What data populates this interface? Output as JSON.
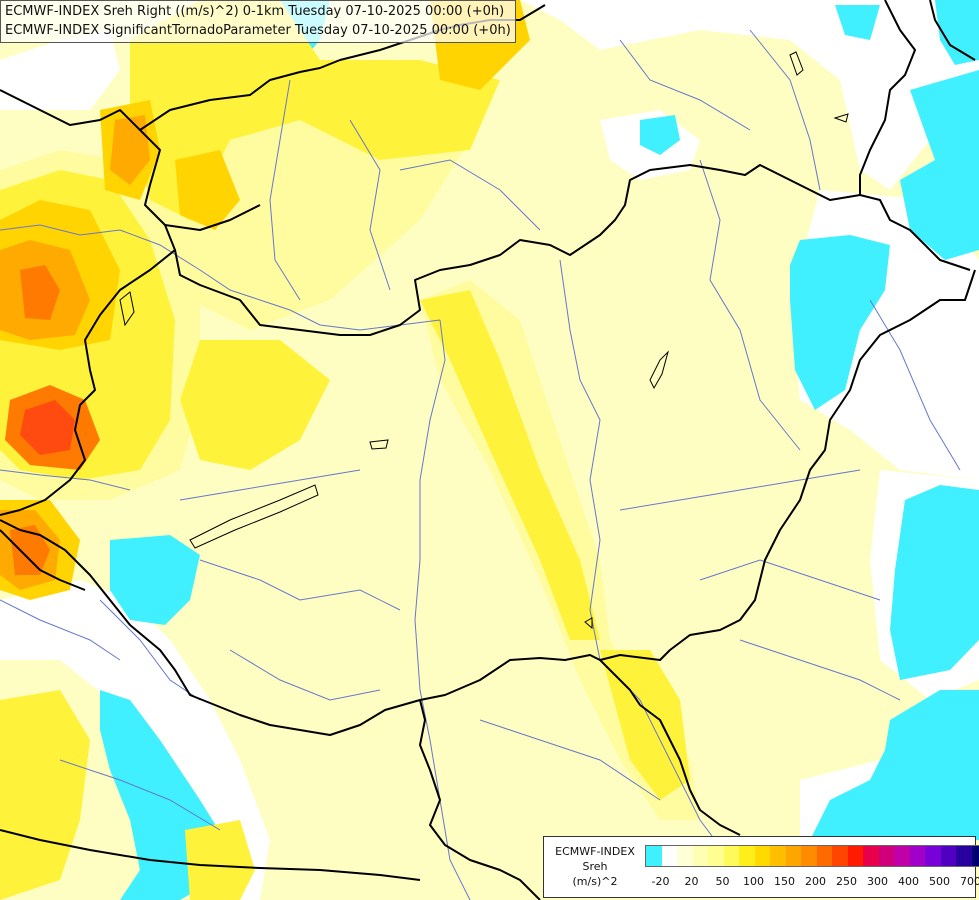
{
  "header": {
    "line1": "ECMWF-INDEX Sreh Right ((m/s)^2) 0-1km Tuesday 07-10-2025 00:00 (+0h)",
    "line2": "ECMWF-INDEX SignificantTornadoParameter Tuesday 07-10-2025 00:00 (+0h)"
  },
  "legend": {
    "title1": "ECMWF-INDEX",
    "title2": "Sreh",
    "title3": "(m/s)^2",
    "swatches": [
      "#40f0ff",
      "#ffffff",
      "#ffffd8",
      "#ffffb4",
      "#fffe90",
      "#fffa5c",
      "#ffee1a",
      "#ffd900",
      "#ffbf00",
      "#ffa500",
      "#ff8c00",
      "#ff6a00",
      "#ff4500",
      "#ff1a00",
      "#e8004a",
      "#d0007a",
      "#c000a8",
      "#a000c8",
      "#7800d8",
      "#5000c0",
      "#2800a0",
      "#000070"
    ],
    "ticks": [
      "-20",
      "20",
      "50",
      "100",
      "150",
      "200",
      "250",
      "300",
      "400",
      "500",
      "700"
    ]
  },
  "colors": {
    "background": "#fffec2",
    "pale_yellow": "#fffca0",
    "yellow": "#fff23a",
    "gold": "#ffd400",
    "orange": "#ffaa00",
    "dark_orange": "#ff7a00",
    "red_orange": "#ff4a10",
    "cyan": "#40f0ff",
    "white": "#ffffff",
    "border": "#000000",
    "river": "#6677cc"
  }
}
